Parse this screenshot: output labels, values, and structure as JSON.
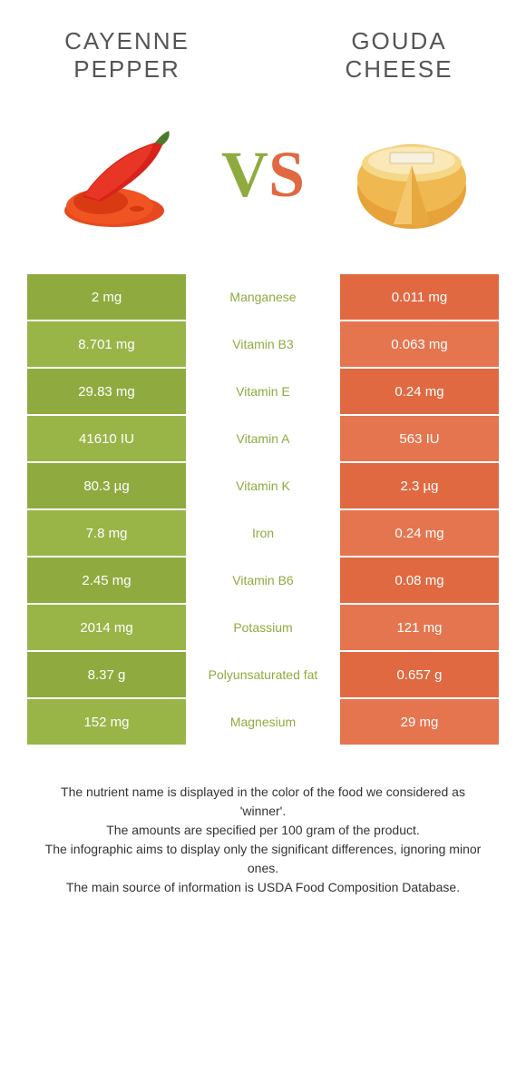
{
  "header": {
    "left_title_l1": "CAYENNE",
    "left_title_l2": "PEPPER",
    "right_title_l1": "GOUDA",
    "right_title_l2": "CHEESE"
  },
  "vs": {
    "v": "V",
    "s": "S"
  },
  "colors": {
    "left": "#8fab3f",
    "right": "#e06942",
    "left_alt": "#99b548",
    "right_alt": "#e5754f",
    "mid_left": "#8fab3f",
    "mid_right": "#e06942"
  },
  "rows": [
    {
      "left": "2 mg",
      "label": "Manganese",
      "right": "0.011 mg",
      "winner": "left"
    },
    {
      "left": "8.701 mg",
      "label": "Vitamin B3",
      "right": "0.063 mg",
      "winner": "left"
    },
    {
      "left": "29.83 mg",
      "label": "Vitamin E",
      "right": "0.24 mg",
      "winner": "left"
    },
    {
      "left": "41610 IU",
      "label": "Vitamin A",
      "right": "563 IU",
      "winner": "left"
    },
    {
      "left": "80.3 µg",
      "label": "Vitamin K",
      "right": "2.3 µg",
      "winner": "left"
    },
    {
      "left": "7.8 mg",
      "label": "Iron",
      "right": "0.24 mg",
      "winner": "left"
    },
    {
      "left": "2.45 mg",
      "label": "Vitamin B6",
      "right": "0.08 mg",
      "winner": "left"
    },
    {
      "left": "2014 mg",
      "label": "Potassium",
      "right": "121 mg",
      "winner": "left"
    },
    {
      "left": "8.37 g",
      "label": "Polyunsaturated fat",
      "right": "0.657 g",
      "winner": "left"
    },
    {
      "left": "152 mg",
      "label": "Magnesium",
      "right": "29 mg",
      "winner": "left"
    }
  ],
  "footer": {
    "l1": "The nutrient name is displayed in the color of the food we considered as 'winner'.",
    "l2": "The amounts are specified per 100 gram of the product.",
    "l3": "The infographic aims to display only the significant differences, ignoring minor ones.",
    "l4": "The main source of information is USDA Food Composition Database."
  }
}
